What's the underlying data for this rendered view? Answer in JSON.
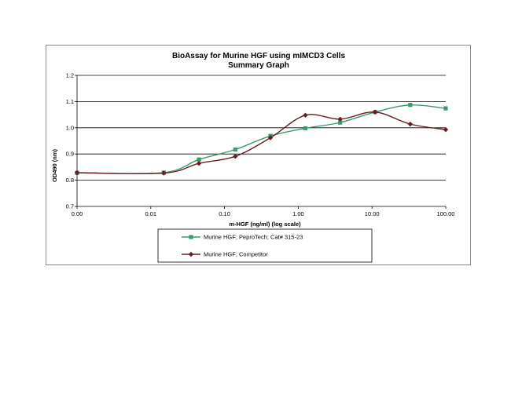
{
  "chart_data": {
    "type": "line",
    "title": "BioAssay for Murine HGF using mIMCD3 Cells",
    "subtitle": "Summary Graph",
    "xlabel": "m-HGF (ng/ml) (log scale)",
    "ylabel": "OD490 (nm)",
    "x_scale": "log",
    "xlim": [
      0.001,
      100
    ],
    "ylim": [
      0.7,
      1.2
    ],
    "x_tick_values": [
      0.001,
      0.01,
      0.1,
      1,
      10,
      100
    ],
    "x_tick_labels": [
      "0.00",
      "0.01",
      "0.10",
      "1.00",
      "10.00",
      "100.00"
    ],
    "y_tick_values": [
      0.7,
      0.8,
      0.9,
      1.0,
      1.1,
      1.2
    ],
    "y_tick_labels": [
      "0.7",
      "0.8",
      "0.9",
      "1.0",
      "1.1",
      "1.2"
    ],
    "grid": "horizontal",
    "legend_position": "bottom",
    "series": [
      {
        "name": "Murine HGF; PeproTech; Cat# 315-23",
        "color": "#3a9a6e",
        "marker": "square",
        "x": [
          0.001,
          0.015,
          0.045,
          0.14,
          0.42,
          1.25,
          3.7,
          11,
          33,
          100
        ],
        "values": [
          0.828,
          0.829,
          0.879,
          0.917,
          0.969,
          0.998,
          1.02,
          1.06,
          1.087,
          1.074
        ]
      },
      {
        "name": "Murine HGF; Competitor",
        "color": "#6b1a1f",
        "marker": "diamond",
        "x": [
          0.001,
          0.015,
          0.045,
          0.14,
          0.42,
          1.25,
          3.7,
          11,
          33,
          100
        ],
        "values": [
          0.829,
          0.827,
          0.864,
          0.891,
          0.962,
          1.048,
          1.033,
          1.06,
          1.014,
          0.993
        ]
      }
    ]
  }
}
